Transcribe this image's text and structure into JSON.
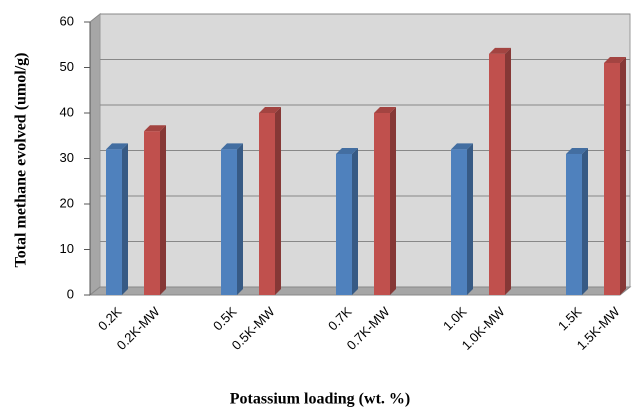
{
  "chart_data": {
    "type": "bar3d",
    "x_label": "Potassium loading (wt. %)",
    "y_label": "Total methane evolved (umol/g)",
    "categories": [
      "0.2K",
      "0.2K-MW",
      "0.5K",
      "0.5K-MW",
      "0.7K",
      "0.7K-MW",
      "1.0K",
      "1.0K-MW",
      "1.5K",
      "1.5K-MW"
    ],
    "values": [
      32,
      36,
      32,
      40,
      31,
      40,
      32,
      53,
      31,
      51
    ],
    "colors": [
      "#4f81bd",
      "#c0504d",
      "#4f81bd",
      "#c0504d",
      "#4f81bd",
      "#c0504d",
      "#4f81bd",
      "#c0504d",
      "#4f81bd",
      "#c0504d"
    ],
    "ylim": [
      0,
      60
    ],
    "yticks": [
      0,
      10,
      20,
      30,
      40,
      50,
      60
    ],
    "grid": true
  }
}
